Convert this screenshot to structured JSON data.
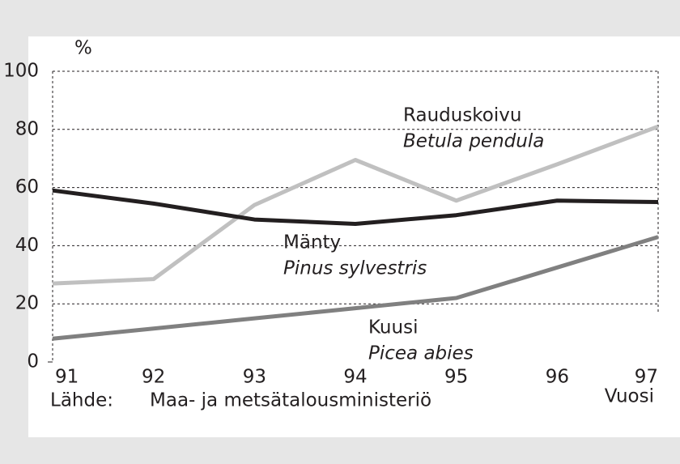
{
  "chart_data": {
    "type": "line",
    "y_label": "%",
    "x_label": "Vuosi",
    "source_label": "Lähde:",
    "source": "Maa- ja metsätalousministeriö",
    "x": [
      91,
      92,
      93,
      94,
      95,
      96,
      97
    ],
    "xlim": [
      91,
      97
    ],
    "xticks": [
      91,
      92,
      93,
      94,
      95,
      96,
      97
    ],
    "ylim": [
      0,
      100
    ],
    "yticks": [
      0,
      20,
      40,
      60,
      80,
      100
    ],
    "grid": true,
    "series": [
      {
        "name": "Rauduskoivu",
        "latin": "Betula pendula",
        "color": "#c0c0c0",
        "values": [
          27,
          28.5,
          54,
          69.5,
          55.5,
          68,
          81
        ]
      },
      {
        "name": "Mänty",
        "latin": "Pinus sylvestris",
        "color": "#231f20",
        "values": [
          59,
          54.5,
          49,
          47.5,
          50.5,
          55.5,
          55
        ]
      },
      {
        "name": "Kuusi",
        "latin": "Picea abies",
        "color": "#808080",
        "values": [
          8,
          11.5,
          15,
          18.5,
          22,
          32.5,
          43
        ]
      }
    ]
  }
}
